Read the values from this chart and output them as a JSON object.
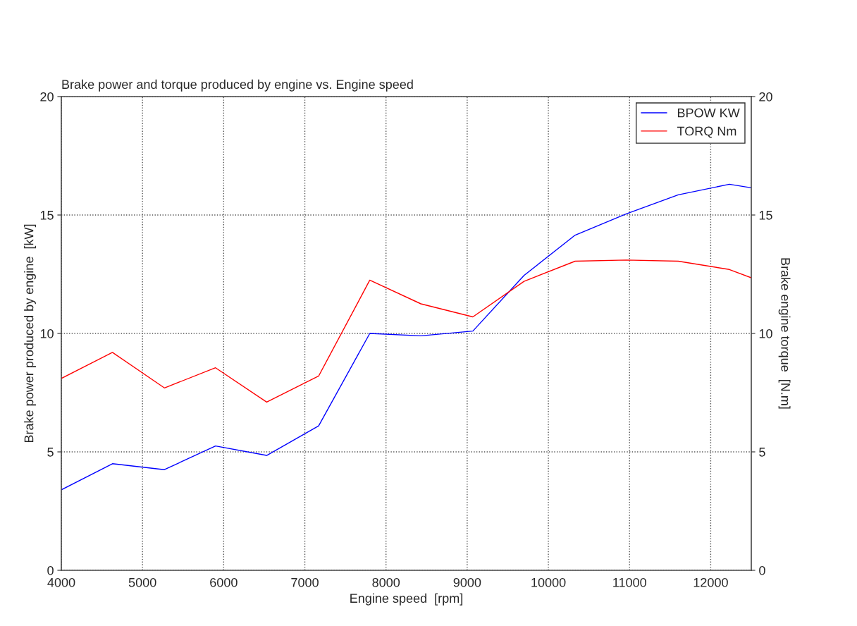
{
  "chart_data": {
    "type": "line",
    "title": "Brake power and torque produced by engine vs. Engine speed",
    "xlabel": "Engine speed  [rpm]",
    "ylabel": "Brake power produced by engine  [kW]",
    "y2label": "Brake engine torque  [N.m]",
    "x": [
      4000,
      4630,
      5270,
      5900,
      6530,
      7170,
      7800,
      8430,
      9070,
      9700,
      10330,
      10960,
      11600,
      12230,
      12500
    ],
    "series": [
      {
        "name": "BPOW KW",
        "color": "#0000ff",
        "values": [
          3.4,
          4.5,
          4.25,
          5.25,
          4.85,
          6.1,
          10.0,
          9.9,
          10.1,
          12.45,
          14.15,
          15.05,
          15.85,
          16.3,
          16.15
        ]
      },
      {
        "name": "TORQ Nm",
        "color": "#ff0000",
        "axis": "y2",
        "values": [
          8.1,
          9.2,
          7.7,
          8.55,
          7.1,
          8.2,
          12.25,
          11.25,
          10.7,
          12.2,
          13.05,
          13.1,
          13.05,
          12.7,
          12.35
        ]
      }
    ],
    "xlim": [
      4000,
      12500
    ],
    "xticks": [
      4000,
      5000,
      6000,
      7000,
      8000,
      9000,
      10000,
      11000,
      12000
    ],
    "ylim": [
      0,
      20
    ],
    "yticks": [
      0,
      5,
      10,
      15,
      20
    ],
    "y2lim": [
      0,
      20
    ],
    "y2ticks": [
      0,
      5,
      10,
      15,
      20
    ],
    "grid": true,
    "legend": "top right",
    "line_style": "solid",
    "marker": "none"
  }
}
